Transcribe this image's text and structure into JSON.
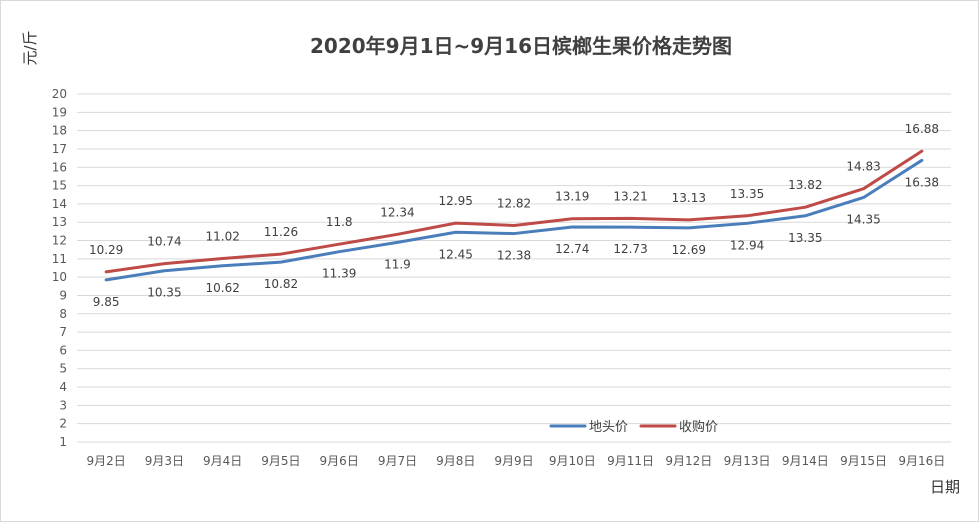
{
  "chart_data": {
    "type": "line",
    "title": "2020年9月1日~9月16日槟榔生果价格走势图",
    "xlabel": "日期",
    "ylabel": "元/斤",
    "ylim": [
      1,
      20
    ],
    "yticks": [
      1,
      2,
      3,
      4,
      5,
      6,
      7,
      8,
      9,
      10,
      11,
      12,
      13,
      14,
      15,
      16,
      17,
      18,
      19,
      20
    ],
    "grid": true,
    "legend_position": "bottom-right",
    "categories": [
      "9月2日",
      "9月3日",
      "9月4日",
      "9月5日",
      "9月6日",
      "9月7日",
      "9月8日",
      "9月9日",
      "9月10日",
      "9月11日",
      "9月12日",
      "9月13日",
      "9月14日",
      "9月15日",
      "9月16日"
    ],
    "series": [
      {
        "name": "地头价",
        "color": "#4a7ebb",
        "values": [
          9.85,
          10.35,
          10.62,
          10.82,
          11.39,
          11.9,
          12.45,
          12.38,
          12.74,
          12.73,
          12.69,
          12.94,
          13.35,
          14.35,
          16.38
        ],
        "labels": [
          "9.85",
          "10.35",
          "10.62",
          "10.82",
          "11.39",
          "11.9",
          "12.45",
          "12.38",
          "12.74",
          "12.73",
          "12.69",
          "12.94",
          "13.35",
          "14.35",
          "16.38"
        ]
      },
      {
        "name": "收购价",
        "color": "#be4b48",
        "values": [
          10.29,
          10.74,
          11.02,
          11.26,
          11.8,
          12.34,
          12.95,
          12.82,
          13.19,
          13.21,
          13.13,
          13.35,
          13.82,
          14.83,
          16.88
        ],
        "labels": [
          "10.29",
          "10.74",
          "11.02",
          "11.26",
          "11.8",
          "12.34",
          "12.95",
          "12.82",
          "13.19",
          "13.21",
          "13.13",
          "13.35",
          "13.82",
          "14.83",
          "16.88"
        ]
      }
    ]
  }
}
